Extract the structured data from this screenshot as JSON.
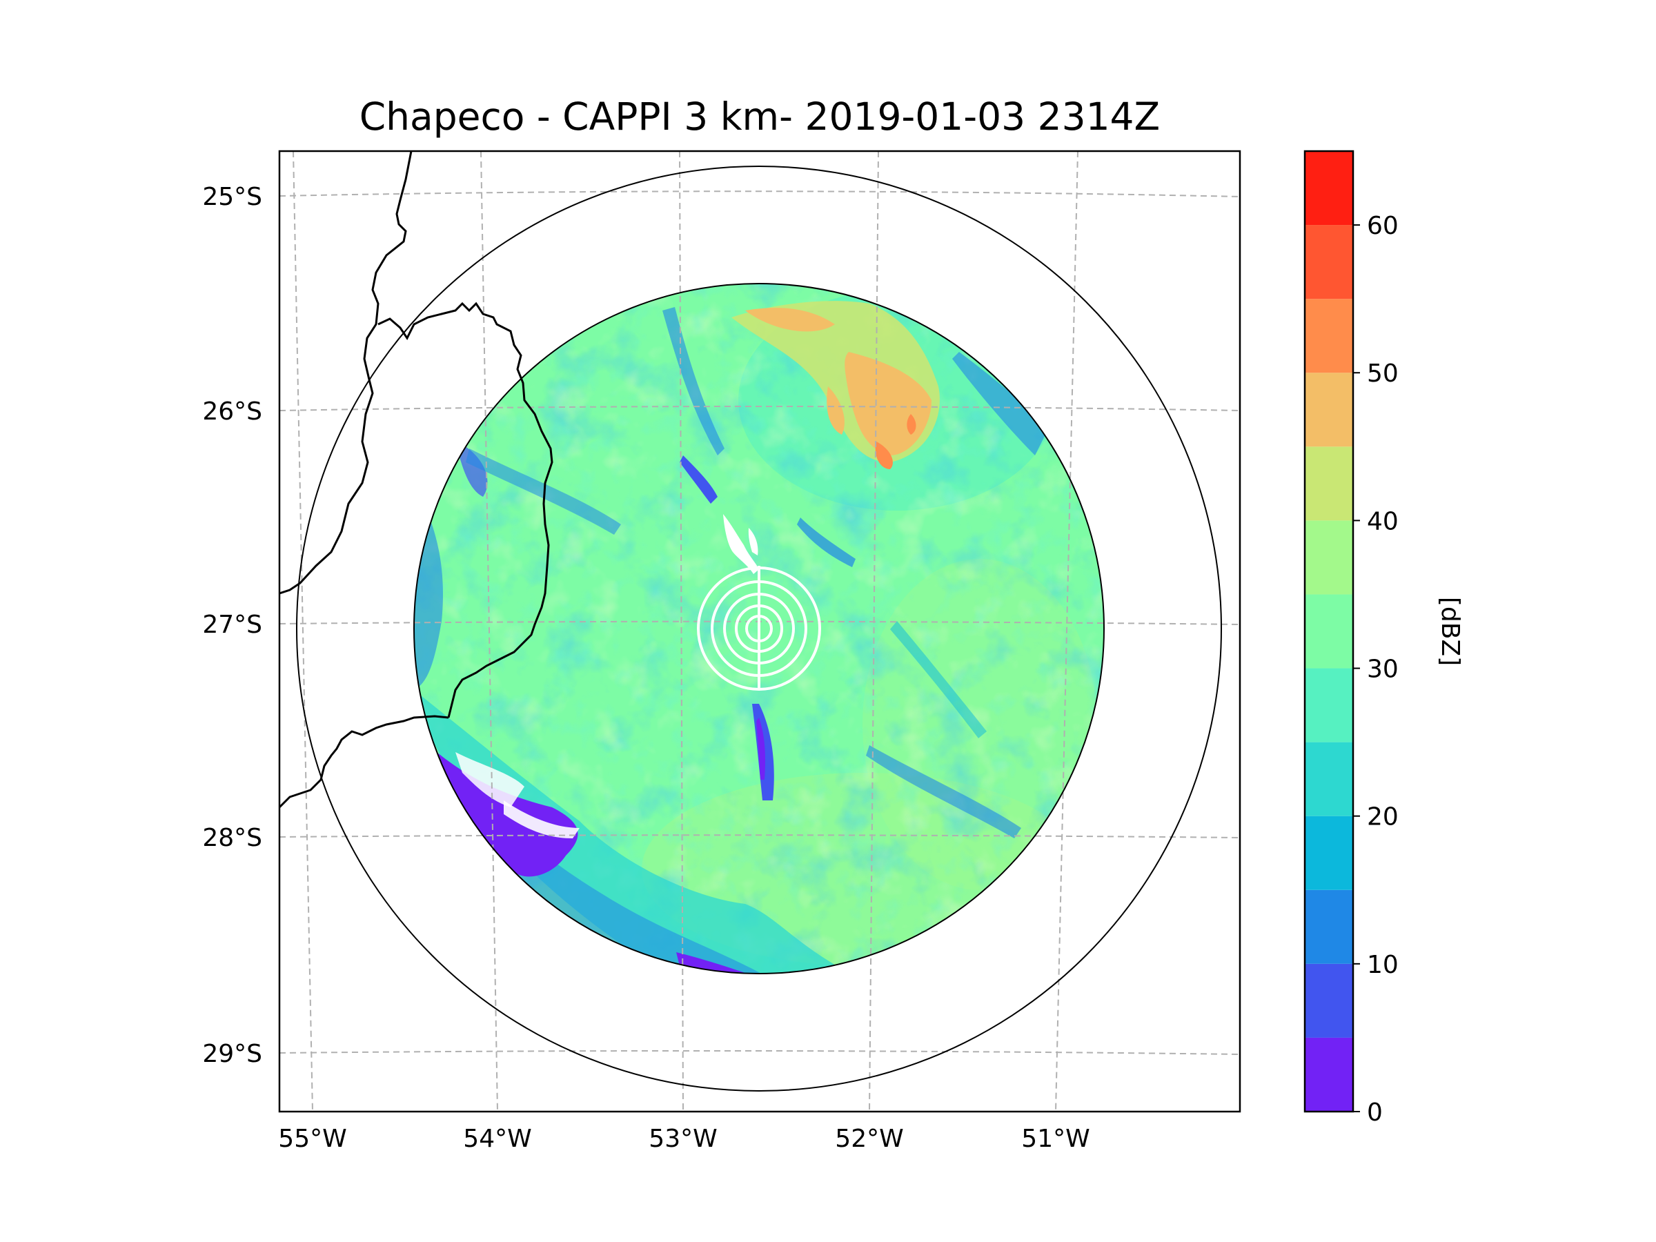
{
  "title": "Chapeco - CAPPI 3 km- 2019-01-03 2314Z",
  "map": {
    "lat_ticks": [
      "25°S",
      "26°S",
      "27°S",
      "28°S",
      "29°S"
    ],
    "lon_ticks": [
      "55°W",
      "54°W",
      "53°W",
      "52°W",
      "51°W"
    ],
    "radar_site": {
      "name": "Chapeco",
      "lat": -27.03,
      "lon": -52.6
    },
    "range_rings": 2,
    "product": "CAPPI 3 km"
  },
  "colorbar": {
    "label": "[dBZ]",
    "ticks": [
      "0",
      "10",
      "20",
      "30",
      "40",
      "50",
      "60"
    ],
    "min": 0,
    "max": 65,
    "step": 5,
    "colors": [
      "#7222f5",
      "#4155ef",
      "#1f88e6",
      "#0cb8dc",
      "#2dd8d0",
      "#56f1c1",
      "#7dfca5",
      "#a3f98b",
      "#c9e774",
      "#f3be67",
      "#ff8c4b",
      "#ff5631",
      "#ff1f12"
    ]
  }
}
